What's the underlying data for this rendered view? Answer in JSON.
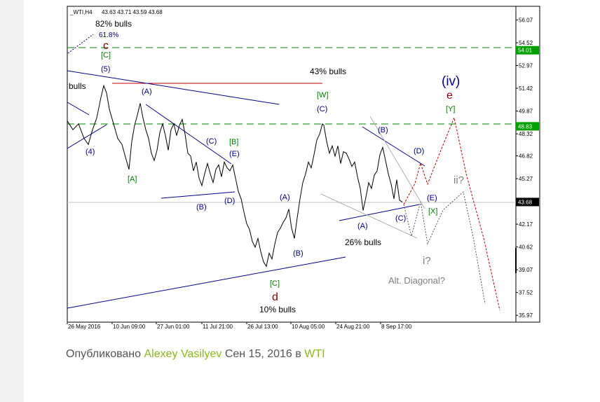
{
  "chart_data": {
    "type": "line",
    "symbol_label": "_WTI,H4",
    "ohlc": "43.63 43.71 43.59 43.68",
    "title": "",
    "xlabel": "",
    "ylabel": "",
    "ylim": [
      35.5,
      57.0
    ],
    "price_ticks": [
      "56.07",
      "54.52",
      "52.97",
      "51.42",
      "49.87",
      "48.32",
      "46.82",
      "45.27",
      "43.72",
      "42.17",
      "40.62",
      "39.07",
      "37.52",
      "35.97"
    ],
    "price_tick_values": [
      56.07,
      54.52,
      52.97,
      51.42,
      49.87,
      48.32,
      46.82,
      45.27,
      43.72,
      42.17,
      40.62,
      39.07,
      37.52,
      35.97
    ],
    "level_badges": [
      {
        "label": "54.01",
        "value": 54.01,
        "color": "#00a000"
      },
      {
        "label": "48.83",
        "value": 48.83,
        "color": "#00a000"
      },
      {
        "label": "43.68",
        "value": 43.68,
        "color": "#000000"
      }
    ],
    "date_ticks": [
      "26 May 2016",
      "10 Jun 09:00",
      "27 Jun 01:00",
      "11 Jul 21:00",
      "26 Jul 13:00",
      "10 Aug 05:00",
      "24 Aug 21:00",
      "8 Sep 17:00"
    ],
    "price_path": [
      [
        0,
        49.2
      ],
      [
        8,
        48.6
      ],
      [
        16,
        49.0
      ],
      [
        24,
        48.0
      ],
      [
        30,
        47.6
      ],
      [
        36,
        48.6
      ],
      [
        42,
        49.4
      ],
      [
        48,
        50.8
      ],
      [
        52,
        51.6
      ],
      [
        56,
        51.1
      ],
      [
        60,
        50.0
      ],
      [
        66,
        49.0
      ],
      [
        72,
        48.0
      ],
      [
        78,
        47.6
      ],
      [
        82,
        46.9
      ],
      [
        88,
        45.9
      ],
      [
        92,
        47.8
      ],
      [
        96,
        48.9
      ],
      [
        100,
        49.6
      ],
      [
        104,
        50.4
      ],
      [
        108,
        49.4
      ],
      [
        112,
        48.6
      ],
      [
        116,
        48.0
      ],
      [
        120,
        47.0
      ],
      [
        124,
        46.5
      ],
      [
        128,
        47.2
      ],
      [
        132,
        48.4
      ],
      [
        136,
        49.0
      ],
      [
        140,
        48.2
      ],
      [
        144,
        47.2
      ],
      [
        148,
        48.6
      ],
      [
        152,
        49.0
      ],
      [
        156,
        48.2
      ],
      [
        160,
        48.9
      ],
      [
        164,
        49.3
      ],
      [
        168,
        48.3
      ],
      [
        172,
        47.0
      ],
      [
        176,
        46.8
      ],
      [
        180,
        45.8
      ],
      [
        184,
        46.4
      ],
      [
        188,
        45.3
      ],
      [
        192,
        44.8
      ],
      [
        196,
        45.6
      ],
      [
        200,
        46.3
      ],
      [
        204,
        45.6
      ],
      [
        208,
        45.0
      ],
      [
        212,
        45.9
      ],
      [
        216,
        46.2
      ],
      [
        220,
        45.4
      ],
      [
        224,
        46.4
      ],
      [
        228,
        46.0
      ],
      [
        232,
        45.8
      ],
      [
        236,
        46.2
      ],
      [
        240,
        45.3
      ],
      [
        244,
        44.4
      ],
      [
        248,
        43.9
      ],
      [
        252,
        43.0
      ],
      [
        256,
        42.2
      ],
      [
        260,
        41.8
      ],
      [
        264,
        41.0
      ],
      [
        268,
        40.6
      ],
      [
        272,
        41.2
      ],
      [
        276,
        40.3
      ],
      [
        280,
        39.6
      ],
      [
        284,
        39.3
      ],
      [
        288,
        40.2
      ],
      [
        292,
        39.8
      ],
      [
        296,
        40.8
      ],
      [
        300,
        41.6
      ],
      [
        304,
        41.9
      ],
      [
        308,
        42.3
      ],
      [
        312,
        42.6
      ],
      [
        316,
        43.2
      ],
      [
        320,
        41.9
      ],
      [
        324,
        41.2
      ],
      [
        328,
        42.6
      ],
      [
        332,
        43.9
      ],
      [
        336,
        45.0
      ],
      [
        340,
        45.6
      ],
      [
        344,
        46.4
      ],
      [
        348,
        46.0
      ],
      [
        352,
        46.9
      ],
      [
        356,
        47.9
      ],
      [
        360,
        48.3
      ],
      [
        364,
        49.0
      ],
      [
        366,
        48.9
      ],
      [
        370,
        47.8
      ],
      [
        374,
        47.0
      ],
      [
        378,
        47.5
      ],
      [
        382,
        46.8
      ],
      [
        386,
        47.5
      ],
      [
        390,
        46.3
      ],
      [
        394,
        47.1
      ],
      [
        398,
        47.0
      ],
      [
        402,
        46.6
      ],
      [
        406,
        46.1
      ],
      [
        410,
        46.4
      ],
      [
        414,
        45.4
      ],
      [
        418,
        44.6
      ],
      [
        422,
        43.1
      ],
      [
        426,
        44.0
      ],
      [
        430,
        45.0
      ],
      [
        434,
        44.6
      ],
      [
        438,
        45.5
      ],
      [
        442,
        45.8
      ],
      [
        446,
        46.9
      ],
      [
        450,
        47.4
      ],
      [
        454,
        46.5
      ],
      [
        458,
        45.6
      ],
      [
        462,
        44.9
      ],
      [
        466,
        43.9
      ],
      [
        470,
        45.2
      ],
      [
        474,
        43.8
      ],
      [
        478,
        43.68
      ]
    ],
    "annotations": [
      {
        "text": "82% bulls",
        "color": "#000000"
      },
      {
        "text": "61.8%",
        "color": "#00008b"
      },
      {
        "text": "c",
        "color": "#8b0000"
      },
      {
        "text": "[C]",
        "color": "#008000"
      },
      {
        "text": "(5)",
        "color": "#00008b"
      },
      {
        "text": "bulls",
        "color": "#000000"
      },
      {
        "text": "(4)",
        "color": "#00008b"
      },
      {
        "text": "(A)",
        "color": "#00008b"
      },
      {
        "text": "[A]",
        "color": "#008000"
      },
      {
        "text": "(B)",
        "color": "#00008b"
      },
      {
        "text": "(C)",
        "color": "#00008b"
      },
      {
        "text": "[B]",
        "color": "#008000"
      },
      {
        "text": "(E)",
        "color": "#00008b"
      },
      {
        "text": "(D)",
        "color": "#00008b"
      },
      {
        "text": "43% bulls",
        "color": "#000000"
      },
      {
        "text": "[W]",
        "color": "#008000"
      },
      {
        "text": "(C)",
        "color": "#00008b"
      },
      {
        "text": "(A)",
        "color": "#00008b"
      },
      {
        "text": "(B)",
        "color": "#00008b"
      },
      {
        "text": "[C]",
        "color": "#008000"
      },
      {
        "text": "d",
        "color": "#8b0000"
      },
      {
        "text": "10% bulls",
        "color": "#000000"
      },
      {
        "text": "(B)",
        "color": "#00008b"
      },
      {
        "text": "(D)",
        "color": "#00008b"
      },
      {
        "text": "(A)",
        "color": "#00008b"
      },
      {
        "text": "(C)",
        "color": "#00008b"
      },
      {
        "text": "26% bulls",
        "color": "#000000"
      },
      {
        "text": "(E)",
        "color": "#00008b"
      },
      {
        "text": "[X]",
        "color": "#008000"
      },
      {
        "text": "(iv)",
        "color": "#00008b"
      },
      {
        "text": "e",
        "color": "#8b0000"
      },
      {
        "text": "[Y]",
        "color": "#008000"
      },
      {
        "text": "ii?",
        "color": "#808080"
      },
      {
        "text": "i?",
        "color": "#808080"
      },
      {
        "text": "Alt. Diagonal?",
        "color": "#808080"
      }
    ],
    "colors": {
      "price": "#000000",
      "trendline": "#00008b",
      "resistance": "#cc0000",
      "level": "#008000",
      "projection": "#cc0000",
      "alt_projection": "#808080"
    },
    "grid": false,
    "legend": "none"
  },
  "byline": {
    "prefix": "Опубликовано",
    "author": "Alexey Vasilyev",
    "date": "Сен 15, 2016",
    "in_word": "в",
    "symbol": "WTI"
  }
}
